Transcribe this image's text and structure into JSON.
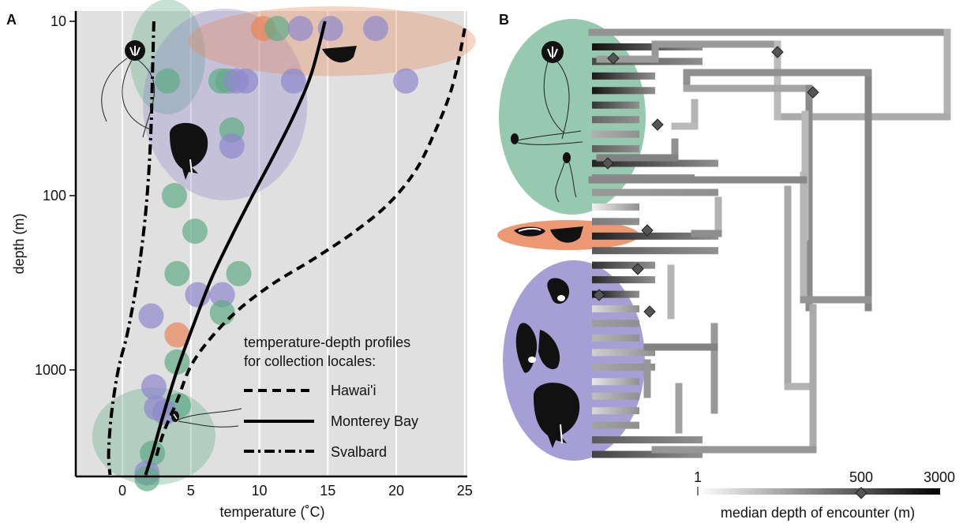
{
  "figure": {
    "panel_a_label": "A",
    "panel_b_label": "B"
  },
  "chart_data": [
    {
      "type": "scatter",
      "panel": "A",
      "xlabel": "temperature (˚C)",
      "ylabel": "depth (m)",
      "x_ticks": [
        "0",
        "5",
        "10",
        "15",
        "20",
        "25"
      ],
      "y_ticks": [
        "10",
        "100",
        "1000"
      ],
      "xlim": [
        -3.3,
        25
      ],
      "ylim_log": [
        10,
        4000
      ],
      "y_scale": "log",
      "grid": "vertical",
      "background_color": "#e0e0e0",
      "group_colors": {
        "green": "#5fab86",
        "purple": "#8e87cc",
        "orange": "#e8865a"
      },
      "legend_title": "temperature-depth profiles for collection locales:",
      "legend_title_lines": [
        "temperature-depth profiles",
        "for collection locales:"
      ],
      "legend_position": "bottom-right",
      "profiles": [
        {
          "name": "Hawai'i",
          "style": "dashed",
          "points": [
            [
              25,
              11
            ],
            [
              24.6,
              16
            ],
            [
              24,
              25
            ],
            [
              23,
              40
            ],
            [
              21.5,
              70
            ],
            [
              19.5,
              110
            ],
            [
              17,
              160
            ],
            [
              14,
              230
            ],
            [
              11,
              320
            ],
            [
              8.5,
              450
            ],
            [
              6.5,
              650
            ],
            [
              5,
              950
            ],
            [
              4,
              1500
            ],
            [
              3,
              2300
            ],
            [
              2.4,
              3300
            ]
          ]
        },
        {
          "name": "Monterey Bay",
          "style": "solid",
          "points": [
            [
              14.8,
              10
            ],
            [
              13.8,
              20
            ],
            [
              12.5,
              35
            ],
            [
              11,
              60
            ],
            [
              9.5,
              100
            ],
            [
              8,
              170
            ],
            [
              6.5,
              300
            ],
            [
              5.2,
              550
            ],
            [
              4,
              1000
            ],
            [
              3,
              1800
            ],
            [
              2.2,
              3000
            ],
            [
              1.7,
              4000
            ]
          ]
        },
        {
          "name": "Svalbard",
          "style": "dash-dot",
          "points": [
            [
              2.3,
              10
            ],
            [
              2.2,
              20
            ],
            [
              2.1,
              40
            ],
            [
              1.9,
              80
            ],
            [
              1.6,
              150
            ],
            [
              1.1,
              300
            ],
            [
              0.4,
              600
            ],
            [
              -0.3,
              1000
            ],
            [
              -0.8,
              1800
            ],
            [
              -1,
              3000
            ],
            [
              -0.9,
              4000
            ]
          ]
        }
      ],
      "ellipses": [
        {
          "group": "green",
          "x": 3.3,
          "y": 16,
          "rx": 5.5,
          "ry_log": 0.33
        },
        {
          "group": "purple",
          "x": 7.5,
          "y": 30,
          "rx": 12,
          "ry_log": 0.55
        },
        {
          "group": "orange",
          "x": 15.3,
          "y": 13,
          "rx": 21,
          "ry_log": 0.2
        },
        {
          "group": "green",
          "x": 2.3,
          "y": 2400,
          "rx": 9,
          "ry_log": 0.28
        }
      ],
      "points": [
        {
          "group": "orange",
          "x": 10.3,
          "y": 11
        },
        {
          "group": "green",
          "x": 11.3,
          "y": 11
        },
        {
          "group": "purple",
          "x": 13,
          "y": 11
        },
        {
          "group": "purple",
          "x": 15.2,
          "y": 11
        },
        {
          "group": "purple",
          "x": 18.5,
          "y": 11
        },
        {
          "group": "green",
          "x": 3.3,
          "y": 22
        },
        {
          "group": "green",
          "x": 7.2,
          "y": 22
        },
        {
          "group": "green",
          "x": 7.7,
          "y": 22
        },
        {
          "group": "purple",
          "x": 8.3,
          "y": 22
        },
        {
          "group": "purple",
          "x": 9,
          "y": 22
        },
        {
          "group": "purple",
          "x": 12.5,
          "y": 22
        },
        {
          "group": "purple",
          "x": 20.7,
          "y": 22
        },
        {
          "group": "green",
          "x": 8,
          "y": 42
        },
        {
          "group": "purple",
          "x": 8,
          "y": 52
        },
        {
          "group": "green",
          "x": 3.8,
          "y": 100
        },
        {
          "group": "green",
          "x": 5.3,
          "y": 160
        },
        {
          "group": "green",
          "x": 4,
          "y": 280
        },
        {
          "group": "green",
          "x": 8.5,
          "y": 280
        },
        {
          "group": "purple",
          "x": 5.5,
          "y": 370
        },
        {
          "group": "purple",
          "x": 7.3,
          "y": 370
        },
        {
          "group": "green",
          "x": 7.3,
          "y": 470
        },
        {
          "group": "purple",
          "x": 2.1,
          "y": 490
        },
        {
          "group": "orange",
          "x": 4,
          "y": 630
        },
        {
          "group": "green",
          "x": 4,
          "y": 900
        },
        {
          "group": "purple",
          "x": 2.3,
          "y": 1250
        },
        {
          "group": "green",
          "x": 4.1,
          "y": 1600
        },
        {
          "group": "purple",
          "x": 2.5,
          "y": 1650
        },
        {
          "group": "purple",
          "x": 3.1,
          "y": 1750
        },
        {
          "group": "green",
          "x": 2.2,
          "y": 3000
        },
        {
          "group": "purple",
          "x": 1.8,
          "y": 3900
        },
        {
          "group": "green",
          "x": 1.8,
          "y": 4200
        }
      ]
    },
    {
      "type": "tree",
      "panel": "B",
      "colorbar_label": "median depth of encounter (m)",
      "colorbar_ticks": [
        "1",
        "500",
        "3000"
      ],
      "colorbar_range": [
        1,
        3000
      ],
      "colorbar_marker": 500,
      "colorbar_gradient": [
        "#ffffff",
        "#000000"
      ],
      "group_colors": {
        "green": "#5fab86",
        "purple": "#8e87cc",
        "orange": "#e8865a"
      },
      "tip_shades": [
        "#e3e3e3",
        "#121212",
        "#4a4a4a",
        "#1a1a1a",
        "#141414",
        "#363636",
        "#686868",
        "#b0b0b0",
        "#5e5e5e",
        "#262626",
        "#8a8a8a",
        "#9a9a9a",
        "#f0f0f0",
        "#7a7a7a",
        "#202020",
        "#5a5a5a",
        "#323232",
        "#2a2a2a",
        "#111111",
        "#dcdcdc",
        "#9e9e9e",
        "#b7b7b7",
        "#cfcfcf",
        "#a8a8a8",
        "#e7e7e7",
        "#c0c0c0",
        "#d8d8d8",
        "#a2a2a2",
        "#5a5a5a",
        "#424242"
      ]
    }
  ]
}
